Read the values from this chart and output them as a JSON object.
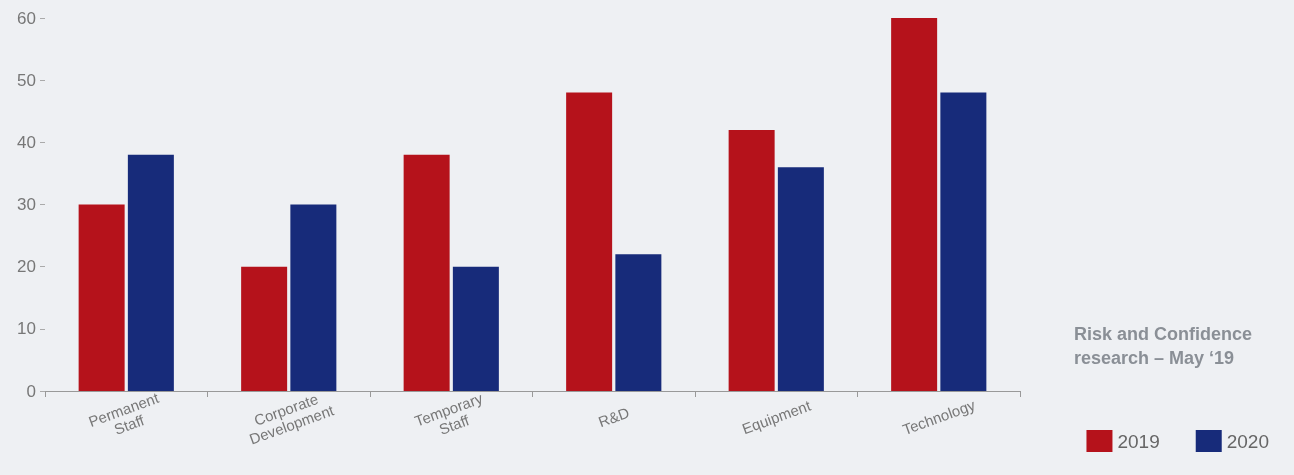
{
  "chart_data": {
    "type": "bar",
    "categories": [
      "Permanent Staff",
      "Corporate Development",
      "Temporary Staff",
      "R&D",
      "Equipment",
      "Technology"
    ],
    "series": [
      {
        "name": "2019",
        "color": "#b5121b",
        "values": [
          30,
          20,
          38,
          48,
          42,
          60
        ]
      },
      {
        "name": "2020",
        "color": "#172b7a",
        "values": [
          38,
          30,
          20,
          22,
          36,
          48
        ]
      }
    ],
    "ylim": [
      0,
      60
    ],
    "yticks": [
      0,
      10,
      20,
      30,
      40,
      50,
      60
    ],
    "grid": false,
    "legend": "bottom right",
    "annotations": [
      "Risk and Confidence research – May ‘19"
    ]
  }
}
